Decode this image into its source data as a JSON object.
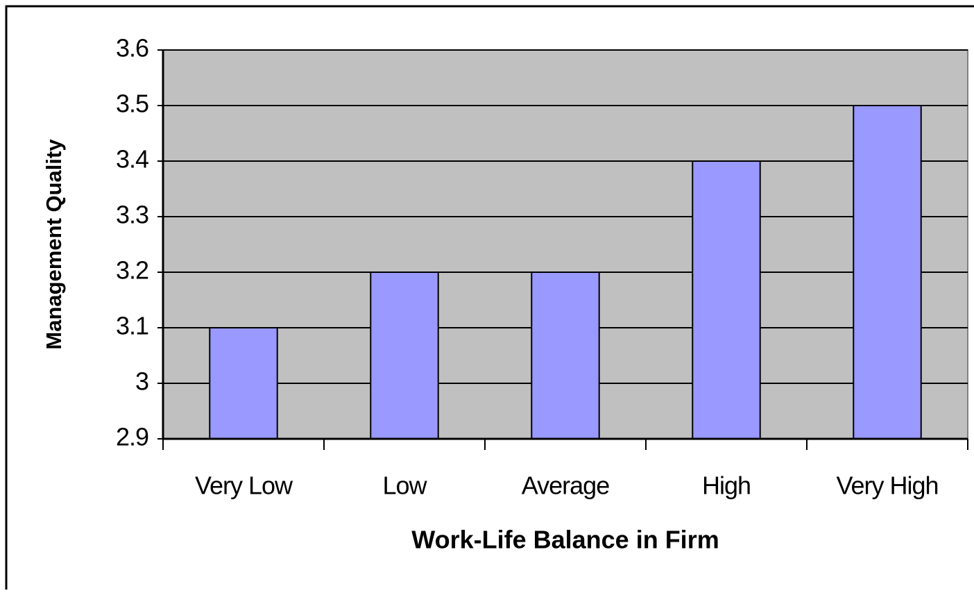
{
  "chart_data": {
    "type": "bar",
    "xlabel": "Work-Life Balance in Firm",
    "ylabel": "Management Quality",
    "categories": [
      "Very Low",
      "Low",
      "Average",
      "High",
      "Very High"
    ],
    "values": [
      3.1,
      3.2,
      3.2,
      3.4,
      3.5
    ],
    "color": "#9999ff",
    "ylim": [
      2.9,
      3.6
    ],
    "yticks": [
      2.9,
      3,
      3.1,
      3.2,
      3.3,
      3.4,
      3.5,
      3.6
    ],
    "grid": true
  }
}
